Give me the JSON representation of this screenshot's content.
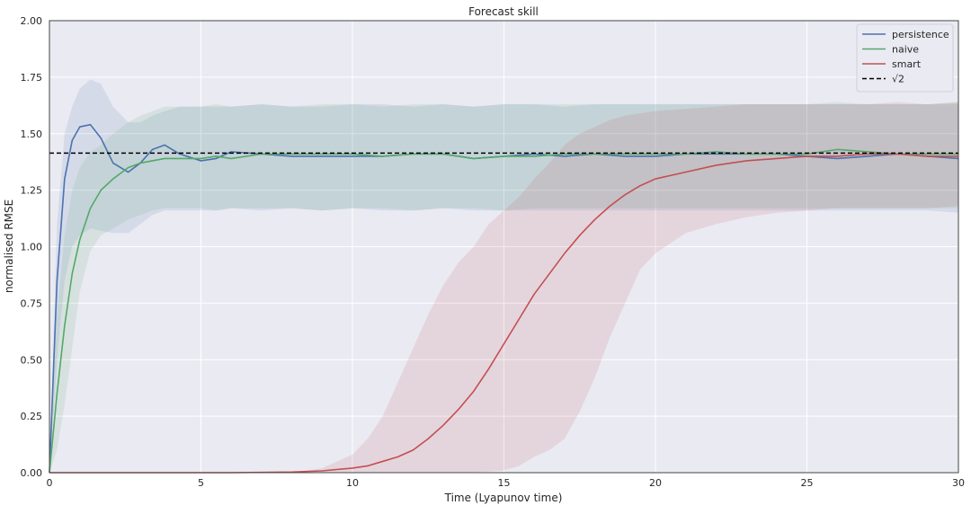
{
  "chart_data": {
    "type": "line",
    "title": "Forecast skill",
    "xlabel": "Time (Lyapunov time)",
    "ylabel": "normalised RMSE",
    "xlim": [
      0,
      30
    ],
    "ylim": [
      0,
      2
    ],
    "xticks": [
      0,
      5,
      10,
      15,
      20,
      25,
      30
    ],
    "xtick_labels": [
      "0",
      "5",
      "10",
      "15",
      "20",
      "25",
      "30"
    ],
    "yticks": [
      0,
      0.25,
      0.5,
      0.75,
      1.0,
      1.25,
      1.5,
      1.75,
      2.0
    ],
    "ytick_labels": [
      "0.00",
      "0.25",
      "0.50",
      "0.75",
      "1.00",
      "1.25",
      "1.50",
      "1.75",
      "2.00"
    ],
    "grid": true,
    "legend_position": "top-right",
    "background": "#eaeaf2",
    "series": [
      {
        "name": "persistence",
        "color": "#4c72b0",
        "x": [
          0,
          0.25,
          0.5,
          0.75,
          1.0,
          1.35,
          1.7,
          2.1,
          2.6,
          3.0,
          3.4,
          3.8,
          4.3,
          5.0,
          5.5,
          6.0,
          7,
          8,
          9,
          10,
          11,
          12,
          13,
          14,
          15,
          16,
          17,
          18,
          19,
          20,
          21,
          22,
          23,
          24,
          25,
          26,
          27,
          28,
          29,
          30
        ],
        "y": [
          0,
          0.85,
          1.3,
          1.47,
          1.53,
          1.54,
          1.48,
          1.37,
          1.33,
          1.37,
          1.43,
          1.45,
          1.41,
          1.38,
          1.39,
          1.42,
          1.41,
          1.4,
          1.4,
          1.4,
          1.4,
          1.41,
          1.41,
          1.39,
          1.4,
          1.41,
          1.4,
          1.41,
          1.4,
          1.4,
          1.41,
          1.41,
          1.41,
          1.41,
          1.4,
          1.39,
          1.4,
          1.41,
          1.4,
          1.39
        ],
        "band_upper": [
          0,
          1.1,
          1.5,
          1.62,
          1.7,
          1.74,
          1.72,
          1.62,
          1.55,
          1.55,
          1.58,
          1.6,
          1.62,
          1.62,
          1.62,
          1.62,
          1.63,
          1.62,
          1.62,
          1.63,
          1.63,
          1.62,
          1.63,
          1.62,
          1.63,
          1.63,
          1.62,
          1.63,
          1.63,
          1.63,
          1.63,
          1.63,
          1.63,
          1.63,
          1.63,
          1.63,
          1.63,
          1.63,
          1.63,
          1.63
        ],
        "band_lower": [
          0,
          0.5,
          0.85,
          1.0,
          1.05,
          1.08,
          1.07,
          1.06,
          1.06,
          1.1,
          1.14,
          1.16,
          1.16,
          1.16,
          1.16,
          1.17,
          1.16,
          1.17,
          1.16,
          1.17,
          1.16,
          1.16,
          1.17,
          1.16,
          1.16,
          1.16,
          1.16,
          1.16,
          1.16,
          1.16,
          1.16,
          1.16,
          1.16,
          1.16,
          1.16,
          1.16,
          1.16,
          1.16,
          1.16,
          1.15
        ]
      },
      {
        "name": "naive",
        "color": "#55a868",
        "x": [
          0,
          0.25,
          0.5,
          0.75,
          1.0,
          1.35,
          1.7,
          2.1,
          2.6,
          3.0,
          3.4,
          3.8,
          4.3,
          5.0,
          5.5,
          6.0,
          7,
          8,
          9,
          10,
          11,
          12,
          13,
          14,
          15,
          16,
          17,
          18,
          19,
          20,
          21,
          22,
          23,
          24,
          25,
          26,
          27,
          28,
          29,
          30
        ],
        "y": [
          0,
          0.35,
          0.65,
          0.88,
          1.03,
          1.17,
          1.25,
          1.3,
          1.35,
          1.37,
          1.38,
          1.39,
          1.39,
          1.39,
          1.4,
          1.39,
          1.41,
          1.41,
          1.41,
          1.41,
          1.4,
          1.41,
          1.41,
          1.39,
          1.4,
          1.4,
          1.41,
          1.41,
          1.41,
          1.41,
          1.41,
          1.42,
          1.41,
          1.41,
          1.41,
          1.43,
          1.42,
          1.41,
          1.41,
          1.41
        ],
        "band_upper": [
          0,
          0.7,
          1.05,
          1.25,
          1.35,
          1.42,
          1.45,
          1.5,
          1.55,
          1.58,
          1.6,
          1.62,
          1.62,
          1.62,
          1.63,
          1.62,
          1.63,
          1.62,
          1.63,
          1.63,
          1.62,
          1.63,
          1.63,
          1.62,
          1.63,
          1.63,
          1.63,
          1.63,
          1.63,
          1.63,
          1.63,
          1.63,
          1.63,
          1.63,
          1.63,
          1.64,
          1.63,
          1.63,
          1.63,
          1.64
        ],
        "band_lower": [
          0,
          0.1,
          0.3,
          0.55,
          0.8,
          0.98,
          1.05,
          1.08,
          1.12,
          1.14,
          1.16,
          1.17,
          1.17,
          1.17,
          1.16,
          1.17,
          1.17,
          1.17,
          1.16,
          1.17,
          1.17,
          1.16,
          1.17,
          1.17,
          1.16,
          1.17,
          1.17,
          1.17,
          1.17,
          1.17,
          1.17,
          1.17,
          1.17,
          1.17,
          1.17,
          1.17,
          1.17,
          1.17,
          1.17,
          1.17
        ]
      },
      {
        "name": "smart",
        "color": "#c44e52",
        "x": [
          0,
          2,
          4,
          6,
          8,
          9,
          10,
          10.5,
          11,
          11.5,
          12,
          12.5,
          13,
          13.5,
          14,
          14.5,
          15,
          15.5,
          16,
          16.5,
          17,
          17.5,
          18,
          18.5,
          19,
          19.5,
          20,
          21,
          22,
          23,
          24,
          25,
          26,
          27,
          28,
          29,
          30
        ],
        "y": [
          0,
          0,
          0,
          0,
          0.003,
          0.008,
          0.02,
          0.03,
          0.05,
          0.07,
          0.1,
          0.15,
          0.21,
          0.28,
          0.36,
          0.46,
          0.57,
          0.68,
          0.79,
          0.88,
          0.97,
          1.05,
          1.12,
          1.18,
          1.23,
          1.27,
          1.3,
          1.33,
          1.36,
          1.38,
          1.39,
          1.4,
          1.4,
          1.41,
          1.41,
          1.4,
          1.4
        ],
        "band_upper": [
          0,
          0,
          0,
          0,
          0,
          0.02,
          0.08,
          0.15,
          0.25,
          0.4,
          0.55,
          0.7,
          0.83,
          0.93,
          1.0,
          1.1,
          1.16,
          1.22,
          1.3,
          1.37,
          1.45,
          1.5,
          1.53,
          1.56,
          1.58,
          1.59,
          1.6,
          1.61,
          1.62,
          1.63,
          1.63,
          1.63,
          1.63,
          1.63,
          1.64,
          1.63,
          1.64
        ],
        "band_lower": [
          0,
          0,
          0,
          0,
          0,
          0,
          0,
          0,
          0,
          0,
          0,
          0,
          0,
          0,
          0.002,
          0.005,
          0.01,
          0.03,
          0.07,
          0.1,
          0.15,
          0.27,
          0.42,
          0.6,
          0.75,
          0.9,
          0.97,
          1.06,
          1.1,
          1.13,
          1.15,
          1.16,
          1.17,
          1.17,
          1.17,
          1.17,
          1.18
        ]
      }
    ],
    "reference_line": {
      "name": "√2",
      "value": 1.4142,
      "color": "#000000",
      "style": "dashed"
    }
  }
}
